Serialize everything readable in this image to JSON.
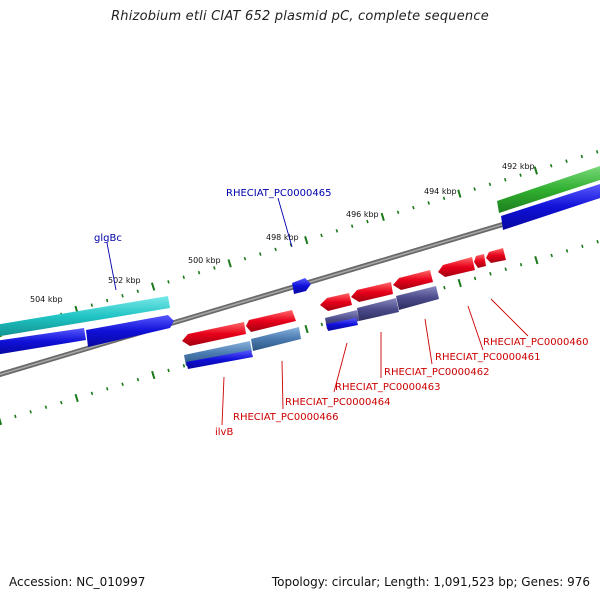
{
  "title": "Rhizobium etli CIAT 652 plasmid pC, complete sequence",
  "footer": {
    "accession": "Accession: NC_010997",
    "info": "Topology: circular; Length: 1,091,523 bp; Genes: 976"
  },
  "colors": {
    "backbone": "#808080",
    "ticks": "#1a7a1a",
    "gene_red": "#e8001a",
    "gene_blue": "#1010d8",
    "gene_cyan": "#20c4c4",
    "gene_green": "#30b030",
    "gene_navy": "#4a4a8a",
    "gene_steel": "#4a7ab0",
    "label_red": "#cc0000",
    "label_blue": "#0000aa"
  },
  "kbp_labels": [
    "492 kbp",
    "494 kbp",
    "496 kbp",
    "498 kbp",
    "500 kbp",
    "502 kbp",
    "504 kbp"
  ],
  "gene_labels": [
    {
      "text": "RHECIAT_PC0000465",
      "color": "blue"
    },
    {
      "text": "glgBc",
      "color": "blue"
    },
    {
      "text": "RHECIAT_PC0000460",
      "color": "red"
    },
    {
      "text": "RHECIAT_PC0000461",
      "color": "red"
    },
    {
      "text": "RHECIAT_PC0000462",
      "color": "red"
    },
    {
      "text": "RHECIAT_PC0000463",
      "color": "red"
    },
    {
      "text": "RHECIAT_PC0000464",
      "color": "red"
    },
    {
      "text": "RHECIAT_PC0000466",
      "color": "red"
    },
    {
      "text": "ilvB",
      "color": "red"
    }
  ]
}
